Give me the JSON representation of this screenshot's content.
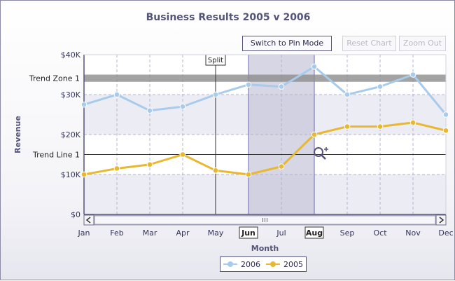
{
  "chart_data": {
    "type": "line",
    "title": "Business Results 2005 v 2006",
    "xlabel": "Month",
    "ylabel": "Revenue",
    "categories": [
      "Jan",
      "Feb",
      "Mar",
      "Apr",
      "May",
      "Jun",
      "Jul",
      "Aug",
      "Sep",
      "Oct",
      "Nov",
      "Dec"
    ],
    "ylim": [
      0,
      40000
    ],
    "y_ticks": [
      0,
      10000,
      20000,
      30000,
      40000
    ],
    "y_tick_labels": [
      "$0",
      "$10K",
      "$20K",
      "$30K",
      "$40K"
    ],
    "grid": true,
    "legend_position": "bottom-center",
    "series": [
      {
        "name": "2006",
        "color": "#a8cbec",
        "values": [
          27500,
          30000,
          26000,
          27000,
          30000,
          32500,
          32000,
          37000,
          30000,
          32000,
          35000,
          25000
        ]
      },
      {
        "name": "2005",
        "color": "#e8b830",
        "values": [
          10000,
          11500,
          12500,
          15000,
          11000,
          10000,
          12000,
          20000,
          22000,
          22000,
          23000,
          21000
        ]
      }
    ],
    "trend_zone": {
      "label": "Trend Zone 1",
      "from": 33200,
      "to": 35000,
      "color": "#8c8c8c"
    },
    "trend_line": {
      "label": "Trend Line 1",
      "value": 15000
    },
    "split_marker": {
      "label": "Split",
      "at": "May"
    },
    "selected_range": {
      "from": "Jun",
      "to": "Aug"
    },
    "highlighted_categories": [
      "Jun",
      "Aug"
    ]
  },
  "toolbar": {
    "pin_mode_label": "Switch to Pin Mode",
    "reset_label": "Reset Chart",
    "zoom_out_label": "Zoom Out"
  },
  "icons": {
    "zoom": "zoom-in-icon",
    "scroll_left": "arrow-left-icon",
    "scroll_right": "arrow-right-icon",
    "scroll_grip": "grip-icon"
  },
  "colors": {
    "axis": "#54547a",
    "plot_bg": "#ececf4",
    "selection": "#c8c8dc",
    "grid": "#b4b4cc"
  }
}
